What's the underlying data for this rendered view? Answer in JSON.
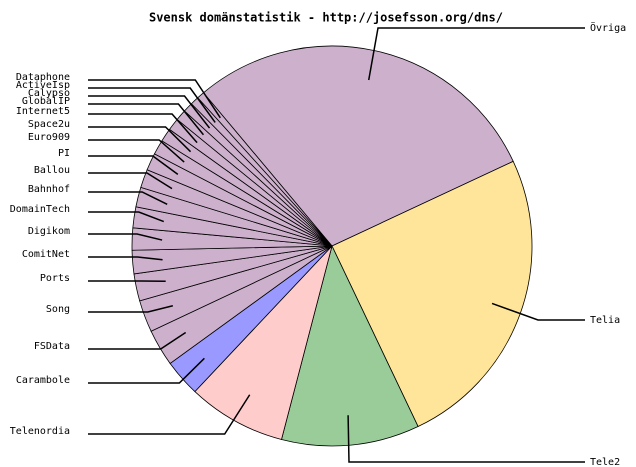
{
  "chart_data": {
    "type": "pie",
    "title": "Svensk domänstatistik - http://josefsson.org/dns/",
    "categories": [
      "Övriga",
      "Telia",
      "Tele2",
      "Telenordia",
      "Carambole",
      "FSData",
      "Song",
      "Ports",
      "ComitNet",
      "Digikom",
      "DomainTech",
      "Bahnhof",
      "Ballou",
      "PI",
      "Euro909",
      "Space2u",
      "Internet5",
      "GlobalIP",
      "Calypso",
      "ActiveIsp",
      "Dataphone"
    ],
    "values": [
      29.3,
      25,
      11.2,
      8,
      3,
      3,
      2.6,
      2.2,
      1.9,
      1.8,
      1.7,
      1.6,
      1.5,
      1.4,
      1.2,
      1.1,
      1.0,
      0.9,
      0.8,
      0.7,
      0.6
    ],
    "colors": [
      "#ccb0cc",
      "#ffe599",
      "#99cc99",
      "#ffcccc",
      "#9999ff",
      "#ccb0cc",
      "#ccb0cc",
      "#ccb0cc",
      "#ccb0cc",
      "#ccb0cc",
      "#ccb0cc",
      "#ccb0cc",
      "#ccb0cc",
      "#ccb0cc",
      "#ccb0cc",
      "#ccb0cc",
      "#ccb0cc",
      "#ccb0cc",
      "#ccb0cc",
      "#ccb0cc",
      "#ccb0cc"
    ]
  }
}
